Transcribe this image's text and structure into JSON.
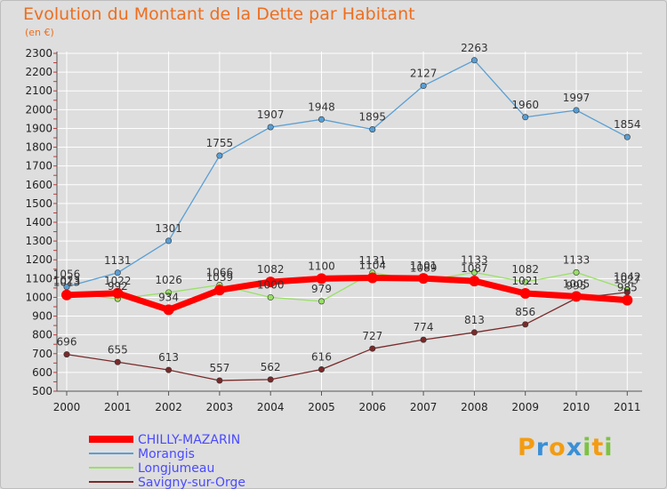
{
  "title": "Evolution du Montant de la Dette par Habitant",
  "subtitle": "(en €)",
  "brand": {
    "letters": [
      "P",
      "r",
      "o",
      "x",
      "i",
      "t",
      "i"
    ],
    "colors": [
      "#f39c12",
      "#3a8fd6",
      "#f39c12",
      "#3a8fd6",
      "#7dc242",
      "#f39c12",
      "#7dc242"
    ]
  },
  "chart_data": {
    "type": "line",
    "x": [
      "2000",
      "2001",
      "2002",
      "2003",
      "2004",
      "2005",
      "2006",
      "2007",
      "2008",
      "2009",
      "2010",
      "2011"
    ],
    "ylim": [
      500,
      2300
    ],
    "yticks": [
      500,
      600,
      700,
      800,
      900,
      1000,
      1100,
      1200,
      1300,
      1400,
      1500,
      1600,
      1700,
      1800,
      1900,
      2000,
      2100,
      2200,
      2300
    ],
    "grid": true,
    "legend_position": "bottom-left",
    "series": [
      {
        "name": "CHILLY-MAZARIN",
        "color": "#ff0000",
        "values": [
          1013,
          1022,
          934,
          1039,
          1082,
          1100,
          1104,
          1101,
          1087,
          1021,
          1005,
          985
        ]
      },
      {
        "name": "Morangis",
        "color": "#5a9fd4",
        "values": [
          1056,
          1131,
          1301,
          1755,
          1907,
          1948,
          1895,
          2127,
          2263,
          1960,
          1997,
          1854
        ]
      },
      {
        "name": "Longjumeau",
        "color": "#99e066",
        "values": [
          1023,
          992,
          1026,
          1066,
          1000,
          979,
          1131,
          1089,
          1133,
          1082,
          1133,
          1042
        ]
      },
      {
        "name": "Savigny-sur-Orge",
        "color": "#7a2a2a",
        "values": [
          696,
          655,
          613,
          557,
          562,
          616,
          727,
          774,
          813,
          856,
          995,
          1027
        ]
      }
    ]
  }
}
